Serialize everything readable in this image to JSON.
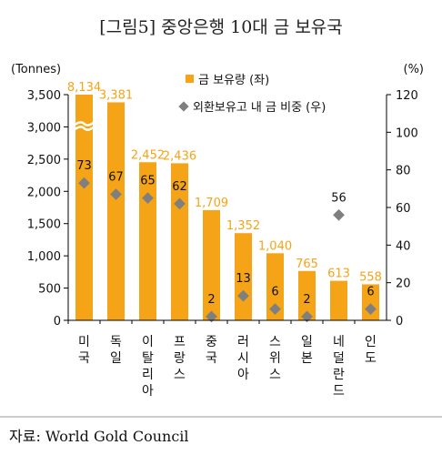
{
  "chart_data": {
    "type": "bar",
    "title": "[그림5] 중앙은행 10대 금 보유국",
    "source": "자료: World Gold Council",
    "y_left_unit": "(Tonnes)",
    "y_right_unit": "(%)",
    "y_left_ticks": [
      "0",
      "500",
      "1,000",
      "1,500",
      "2,000",
      "2,500",
      "3,000",
      "3,500"
    ],
    "y_right_ticks": [
      "0",
      "20",
      "40",
      "60",
      "80",
      "100",
      "120"
    ],
    "y_left_lim": [
      0,
      3500
    ],
    "y_right_lim": [
      0,
      120
    ],
    "axis_break": true,
    "categories": [
      "미국",
      "독일",
      "이탈리아",
      "프랑스",
      "중국",
      "러시아",
      "스위스",
      "일본",
      "네덜란드",
      "인도"
    ],
    "series": [
      {
        "name": "금 보유량 (좌)",
        "kind": "bar",
        "axis": "left",
        "color": "#f5a417",
        "values": [
          8134,
          3381,
          2452,
          2436,
          1709,
          1352,
          1040,
          765,
          613,
          558
        ],
        "labels": [
          "8,134",
          "3,381",
          "2,452",
          "2,436",
          "1,709",
          "1,352",
          "1,040",
          "765",
          "613",
          "558"
        ]
      },
      {
        "name": "외환보유고 내 금 비중 (우)",
        "kind": "scatter",
        "axis": "right",
        "color": "#7f7f7f",
        "values": [
          73,
          67,
          65,
          62,
          2,
          13,
          6,
          2,
          56,
          6
        ],
        "labels": [
          "73",
          "67",
          "65",
          "62",
          "2",
          "13",
          "6",
          "2",
          "56",
          "6"
        ]
      }
    ],
    "grid": false,
    "legend_position": "top-right"
  }
}
